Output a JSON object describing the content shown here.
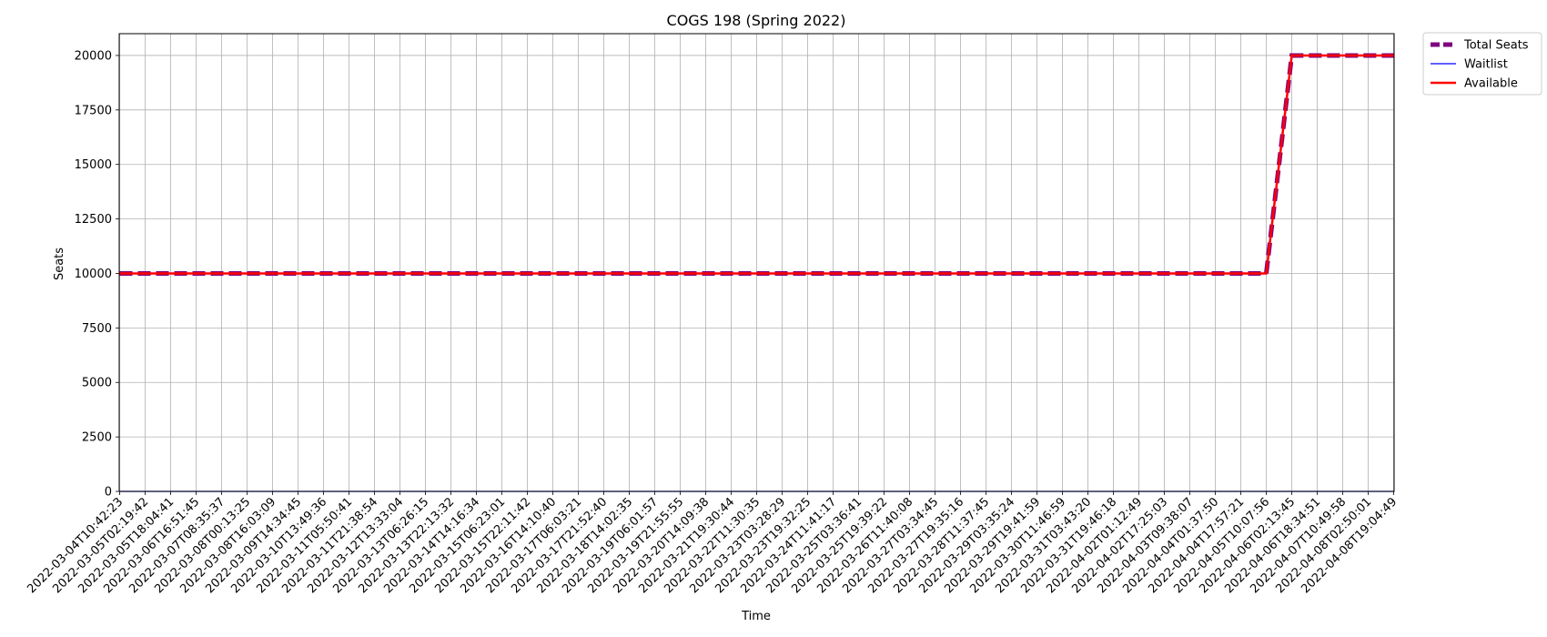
{
  "chart_data": {
    "type": "line",
    "title": "COGS 198 (Spring 2022)",
    "xlabel": "Time",
    "ylabel": "Seats",
    "ylim": [
      0,
      21000
    ],
    "yticks": [
      0,
      2500,
      5000,
      7500,
      10000,
      12500,
      15000,
      17500,
      20000
    ],
    "grid": true,
    "legend_position": "outside-top-right",
    "x": [
      "2022-03-04T10:42:23",
      "2022-03-05T02:19:42",
      "2022-03-05T18:04:41",
      "2022-03-06T16:51:45",
      "2022-03-07T08:35:37",
      "2022-03-08T00:13:25",
      "2022-03-08T16:03:09",
      "2022-03-09T14:34:45",
      "2022-03-10T13:49:36",
      "2022-03-11T05:50:41",
      "2022-03-11T21:38:54",
      "2022-03-12T13:33:04",
      "2022-03-13T06:26:15",
      "2022-03-13T22:13:32",
      "2022-03-14T14:16:34",
      "2022-03-15T06:23:01",
      "2022-03-15T22:11:42",
      "2022-03-16T14:10:40",
      "2022-03-17T06:03:21",
      "2022-03-17T21:52:40",
      "2022-03-18T14:02:35",
      "2022-03-19T06:01:57",
      "2022-03-19T21:55:55",
      "2022-03-20T14:09:38",
      "2022-03-21T19:30:44",
      "2022-03-22T11:30:35",
      "2022-03-23T03:28:29",
      "2022-03-23T19:32:25",
      "2022-03-24T11:41:17",
      "2022-03-25T03:36:41",
      "2022-03-25T19:39:22",
      "2022-03-26T11:40:08",
      "2022-03-27T03:34:45",
      "2022-03-27T19:35:16",
      "2022-03-28T11:37:45",
      "2022-03-29T03:35:24",
      "2022-03-29T19:41:59",
      "2022-03-30T11:46:59",
      "2022-03-31T03:43:20",
      "2022-03-31T19:46:18",
      "2022-04-02T01:12:49",
      "2022-04-02T17:25:03",
      "2022-04-03T09:38:07",
      "2022-04-04T01:37:50",
      "2022-04-04T17:57:21",
      "2022-04-05T10:07:56",
      "2022-04-06T02:13:45",
      "2022-04-06T18:34:51",
      "2022-04-07T10:49:58",
      "2022-04-08T02:50:01",
      "2022-04-08T19:04:49"
    ],
    "series": [
      {
        "name": "Total Seats",
        "color": "#800080",
        "style": "dashed",
        "values": [
          10000,
          10000,
          10000,
          10000,
          10000,
          10000,
          10000,
          10000,
          10000,
          10000,
          10000,
          10000,
          10000,
          10000,
          10000,
          10000,
          10000,
          10000,
          10000,
          10000,
          10000,
          10000,
          10000,
          10000,
          10000,
          10000,
          10000,
          10000,
          10000,
          10000,
          10000,
          10000,
          10000,
          10000,
          10000,
          10000,
          10000,
          10000,
          10000,
          10000,
          10000,
          10000,
          10000,
          10000,
          10000,
          10000,
          20000,
          20000,
          20000,
          20000,
          20000
        ]
      },
      {
        "name": "Waitlist",
        "color": "#0000ff",
        "style": "solid-thin",
        "values": [
          0,
          0,
          0,
          0,
          0,
          0,
          0,
          0,
          0,
          0,
          0,
          0,
          0,
          0,
          0,
          0,
          0,
          0,
          0,
          0,
          0,
          0,
          0,
          0,
          0,
          0,
          0,
          0,
          0,
          0,
          0,
          0,
          0,
          0,
          0,
          0,
          0,
          0,
          0,
          0,
          0,
          0,
          0,
          0,
          0,
          0,
          0,
          0,
          0,
          0,
          0
        ]
      },
      {
        "name": "Available",
        "color": "#ff0000",
        "style": "solid",
        "values": [
          10000,
          10000,
          10000,
          10000,
          10000,
          10000,
          10000,
          10000,
          10000,
          10000,
          10000,
          10000,
          10000,
          10000,
          10000,
          10000,
          10000,
          10000,
          10000,
          10000,
          10000,
          10000,
          10000,
          10000,
          10000,
          10000,
          10000,
          10000,
          10000,
          10000,
          10000,
          10000,
          10000,
          10000,
          10000,
          10000,
          10000,
          10000,
          10000,
          10000,
          10000,
          10000,
          10000,
          10000,
          10000,
          10000,
          20000,
          20000,
          20000,
          20000,
          20000
        ]
      }
    ]
  }
}
